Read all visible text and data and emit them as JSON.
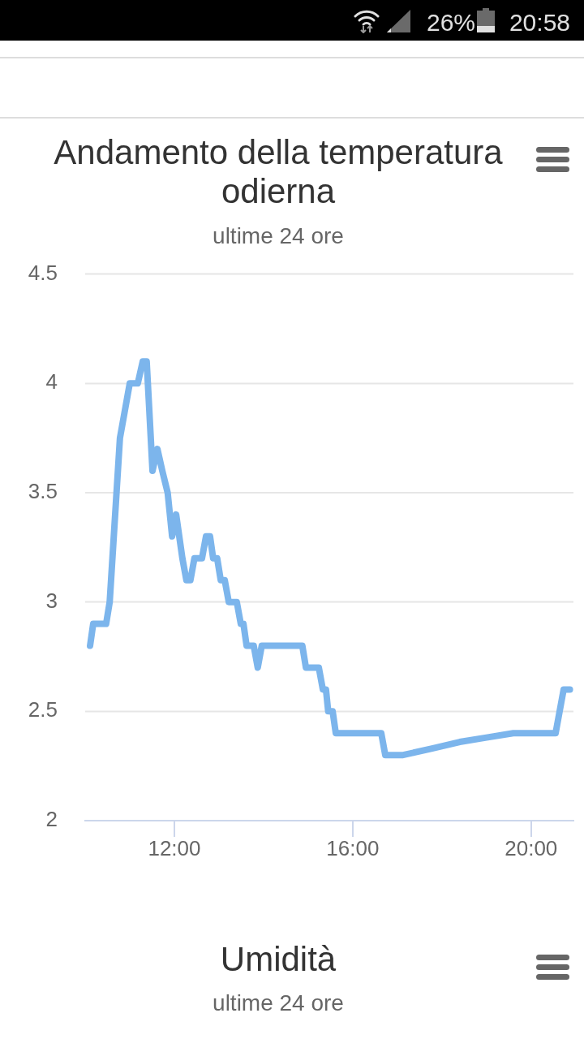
{
  "chart_data": [
    {
      "type": "line",
      "title": "Andamento della temperatura odierna",
      "subtitle": "ultime 24 ore",
      "x": [
        10.11,
        10.18,
        10.47,
        10.55,
        10.78,
        11.0,
        11.18,
        11.29,
        11.38,
        11.51,
        11.62,
        11.73,
        11.85,
        11.95,
        12.04,
        12.18,
        12.27,
        12.36,
        12.45,
        12.62,
        12.71,
        12.8,
        12.87,
        12.96,
        13.04,
        13.13,
        13.22,
        13.4,
        13.49,
        13.55,
        13.62,
        13.78,
        13.87,
        13.96,
        14.87,
        14.95,
        15.24,
        15.33,
        15.4,
        15.45,
        15.55,
        15.62,
        16.64,
        16.73,
        17.13,
        17.78,
        18.4,
        19.0,
        19.6,
        20.55,
        20.73,
        20.87
      ],
      "series": [
        {
          "color": "#7cb5ec",
          "values": [
            2.8,
            2.9,
            2.9,
            3.0,
            3.75,
            4.0,
            4.0,
            4.1,
            4.1,
            3.6,
            3.7,
            3.6,
            3.5,
            3.3,
            3.4,
            3.2,
            3.1,
            3.1,
            3.2,
            3.2,
            3.3,
            3.3,
            3.2,
            3.2,
            3.1,
            3.1,
            3.0,
            3.0,
            2.9,
            2.9,
            2.8,
            2.8,
            2.7,
            2.8,
            2.8,
            2.7,
            2.7,
            2.6,
            2.6,
            2.5,
            2.5,
            2.4,
            2.4,
            2.3,
            2.3,
            2.33,
            2.36,
            2.38,
            2.4,
            2.4,
            2.6,
            2.6
          ]
        }
      ],
      "xlim": [
        10,
        20.95
      ],
      "xticks": [
        {
          "value": 12,
          "label": "12:00"
        },
        {
          "value": 16,
          "label": "16:00"
        },
        {
          "value": 20,
          "label": "20:00"
        }
      ],
      "ylim": [
        2,
        4.5
      ],
      "yticks": [
        2,
        2.5,
        3,
        3.5,
        4,
        4.5
      ],
      "grid": "y",
      "legend": false,
      "marker": "none",
      "line_style": "solid",
      "annotations": [
        "26%",
        "20:58"
      ]
    },
    {
      "type": "other",
      "title": "Umidità",
      "subtitle": "ultime 24 ore"
    }
  ]
}
